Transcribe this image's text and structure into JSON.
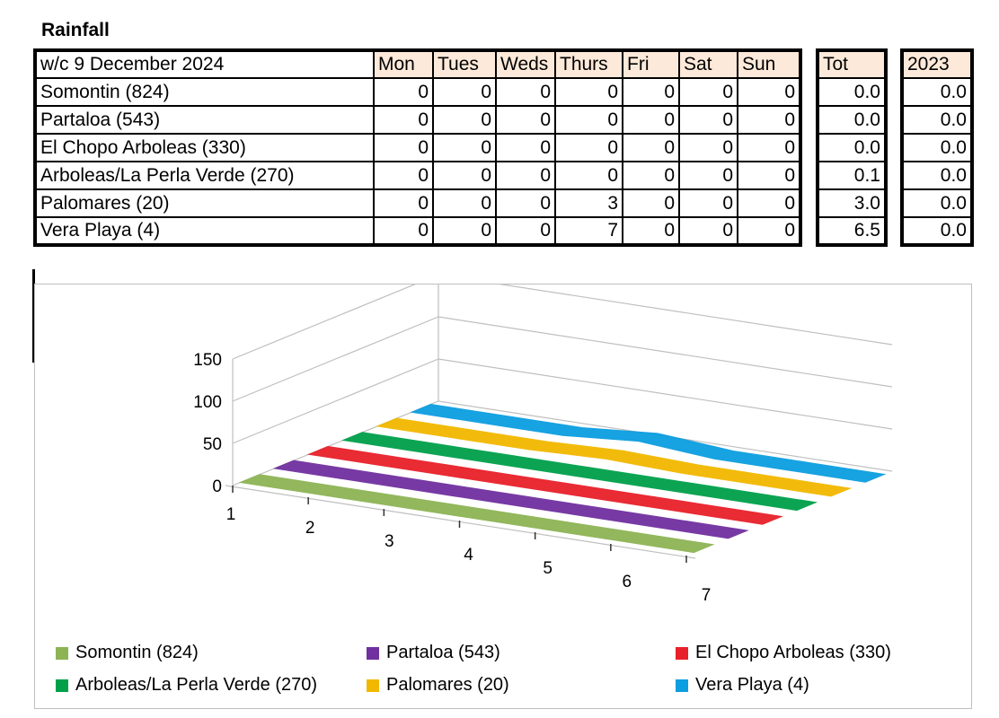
{
  "title": "Rainfall",
  "table": {
    "week_label": "w/c 9 December 2024",
    "days": [
      "Mon",
      "Tues",
      "Weds",
      "Thurs",
      "Fri",
      "Sat",
      "Sun"
    ],
    "tot_header": "Tot",
    "prev_header": "2023",
    "header_color": "#fde9d9",
    "rows": [
      {
        "name": "Somontin (824)",
        "values": [
          "0",
          "0",
          "0",
          "0",
          "0",
          "0",
          "0"
        ],
        "tot": "0.0",
        "prev": "0.0"
      },
      {
        "name": "Partaloa (543)",
        "values": [
          "0",
          "0",
          "0",
          "0",
          "0",
          "0",
          "0"
        ],
        "tot": "0.0",
        "prev": "0.0"
      },
      {
        "name": "El Chopo Arboleas (330)",
        "values": [
          "0",
          "0",
          "0",
          "0",
          "0",
          "0",
          "0"
        ],
        "tot": "0.0",
        "prev": "0.0"
      },
      {
        "name": "Arboleas/La Perla Verde (270)",
        "values": [
          "0",
          "0",
          "0",
          "0",
          "0",
          "0",
          "0"
        ],
        "tot": "0.1",
        "prev": "0.0"
      },
      {
        "name": "Palomares (20)",
        "values": [
          "0",
          "0",
          "0",
          "3",
          "0",
          "0",
          "0"
        ],
        "tot": "3.0",
        "prev": "0.0"
      },
      {
        "name": "Vera Playa (4)",
        "values": [
          "0",
          "0",
          "0",
          "7",
          "0",
          "0",
          "0"
        ],
        "tot": "6.5",
        "prev": "0.0"
      }
    ]
  },
  "chart_data": {
    "type": "area",
    "x": [
      "1",
      "2",
      "3",
      "4",
      "5",
      "6",
      "7"
    ],
    "y_ticks": [
      "0",
      "50",
      "100",
      "150"
    ],
    "ylim": [
      0,
      150
    ],
    "grid": true,
    "legend_position": "bottom",
    "series": [
      {
        "name": "Somontin (824)",
        "values": [
          0,
          0,
          0,
          0,
          0,
          0,
          0
        ],
        "color": "#8db454"
      },
      {
        "name": "Partaloa (543)",
        "values": [
          0,
          0,
          0,
          0,
          0,
          0,
          0
        ],
        "color": "#7030a0"
      },
      {
        "name": "El Chopo Arboleas (330)",
        "values": [
          0,
          0,
          0,
          0,
          0,
          0,
          0
        ],
        "color": "#e8202a"
      },
      {
        "name": "Arboleas/La Perla Verde (270)",
        "values": [
          0,
          0,
          0,
          0,
          0,
          0,
          0
        ],
        "color": "#00a04a"
      },
      {
        "name": "Palomares (20)",
        "values": [
          0,
          0,
          0,
          3,
          0,
          0,
          0
        ],
        "color": "#f2b800"
      },
      {
        "name": "Vera Playa (4)",
        "values": [
          0,
          0,
          0,
          7,
          0,
          0,
          0
        ],
        "color": "#0b9ee0"
      }
    ]
  }
}
